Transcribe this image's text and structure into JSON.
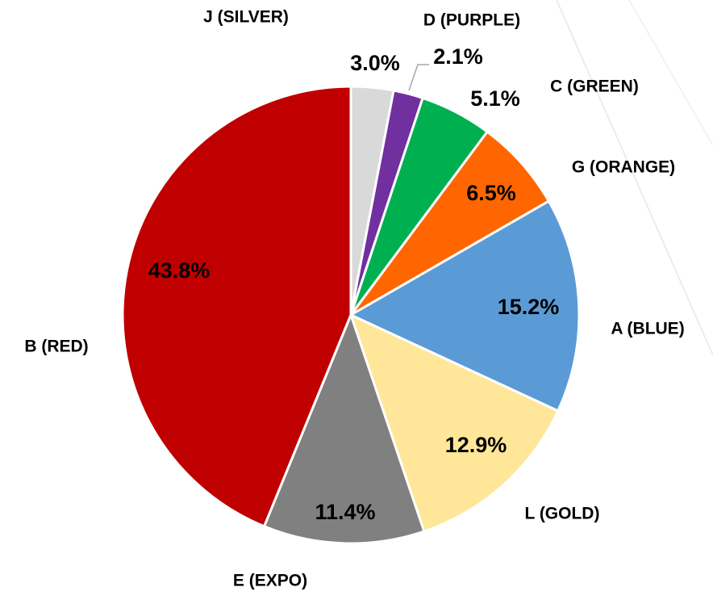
{
  "chart_data": {
    "type": "pie",
    "categories": [
      "J (SILVER)",
      "D (PURPLE)",
      "C (GREEN)",
      "G (ORANGE)",
      "A (BLUE)",
      "L (GOLD)",
      "E (EXPO)",
      "B (RED)"
    ],
    "values": [
      3.0,
      2.1,
      5.1,
      6.5,
      15.2,
      12.9,
      11.4,
      43.8
    ],
    "value_labels": [
      "3.0%",
      "2.1%",
      "5.1%",
      "6.5%",
      "15.2%",
      "12.9%",
      "11.4%",
      "43.8%"
    ],
    "colors": [
      "#d9d9d9",
      "#7030a0",
      "#00b050",
      "#ff6600",
      "#5b9bd5",
      "#ffe699",
      "#808080",
      "#c00000"
    ]
  }
}
